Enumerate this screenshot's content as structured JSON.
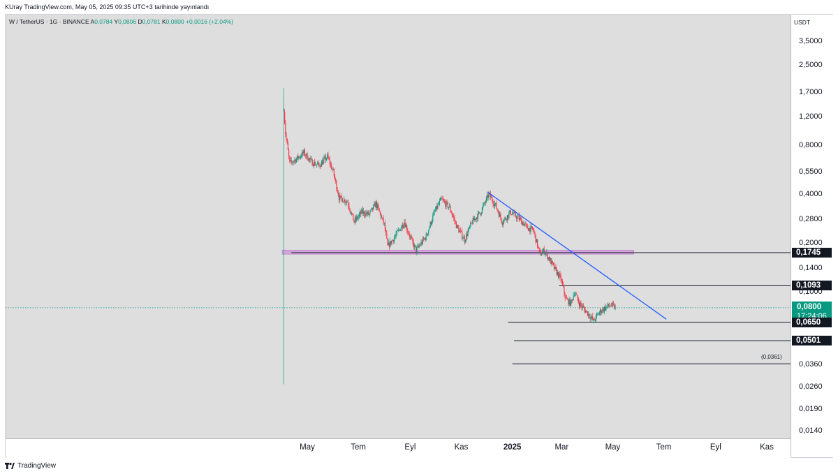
{
  "header": {
    "publisher": "KUray TradingView.com, May 05, 2025 09:35 UTC+3 tarihinde yayınlandı"
  },
  "legend": {
    "symbol": "W / TetherUS · 1G · BINANCE",
    "open_label": "A",
    "open": "0,0784",
    "high_label": "Y",
    "high": "0,0806",
    "low_label": "D",
    "low": "0,0781",
    "close_label": "K",
    "close": "0,0800",
    "change": "+0,0016 (+2,04%)"
  },
  "footer": {
    "brand": "TradingView"
  },
  "chart_data": {
    "type": "candlestick",
    "symbol": "W/USDT",
    "timeframe": "1G",
    "exchange": "BINANCE",
    "y_scale": "log",
    "y_unit": "USDT",
    "ylim": [
      0.0125,
      4.6
    ],
    "y_ticks": [
      "3,5000",
      "2,5000",
      "1,7000",
      "1,2000",
      "0,8000",
      "0,5500",
      "0,4000",
      "0,2800",
      "0,2000",
      "0,1400",
      "0,1000",
      "0,0360",
      "0,0260",
      "0,0190",
      "0,0140"
    ],
    "y_tick_values": [
      3.5,
      2.5,
      1.7,
      1.2,
      0.8,
      0.55,
      0.4,
      0.28,
      0.2,
      0.14,
      0.1,
      0.036,
      0.026,
      0.019,
      0.014
    ],
    "x_ticks": [
      "May",
      "Tem",
      "Eyl",
      "Kas",
      "2025",
      "Mar",
      "May",
      "Tem",
      "Eyl",
      "Kas"
    ],
    "x_tick_dates": [
      "2024-05-01",
      "2024-07-01",
      "2024-09-01",
      "2024-11-01",
      "2025-01-01",
      "2025-03-01",
      "2025-05-01",
      "2025-07-01",
      "2025-09-01",
      "2025-11-01"
    ],
    "bold_x_tick": "2025",
    "price_path": [
      [
        "2024-04-03",
        1.35
      ],
      [
        "2024-04-05",
        0.95
      ],
      [
        "2024-04-10",
        0.62
      ],
      [
        "2024-04-18",
        0.66
      ],
      [
        "2024-04-27",
        0.72
      ],
      [
        "2024-05-06",
        0.63
      ],
      [
        "2024-05-15",
        0.6
      ],
      [
        "2024-05-25",
        0.68
      ],
      [
        "2024-06-01",
        0.55
      ],
      [
        "2024-06-08",
        0.38
      ],
      [
        "2024-06-18",
        0.36
      ],
      [
        "2024-06-26",
        0.27
      ],
      [
        "2024-07-05",
        0.31
      ],
      [
        "2024-07-14",
        0.3
      ],
      [
        "2024-07-22",
        0.35
      ],
      [
        "2024-08-01",
        0.26
      ],
      [
        "2024-08-05",
        0.19
      ],
      [
        "2024-08-14",
        0.22
      ],
      [
        "2024-08-25",
        0.27
      ],
      [
        "2024-09-02",
        0.21
      ],
      [
        "2024-09-08",
        0.18
      ],
      [
        "2024-09-20",
        0.22
      ],
      [
        "2024-09-30",
        0.31
      ],
      [
        "2024-10-08",
        0.37
      ],
      [
        "2024-10-18",
        0.33
      ],
      [
        "2024-10-27",
        0.25
      ],
      [
        "2024-11-05",
        0.21
      ],
      [
        "2024-11-14",
        0.27
      ],
      [
        "2024-11-24",
        0.31
      ],
      [
        "2024-12-04",
        0.4
      ],
      [
        "2024-12-12",
        0.34
      ],
      [
        "2024-12-20",
        0.27
      ],
      [
        "2024-12-30",
        0.31
      ],
      [
        "2025-01-10",
        0.28
      ],
      [
        "2025-01-18",
        0.25
      ],
      [
        "2025-01-26",
        0.24
      ],
      [
        "2025-02-03",
        0.17
      ],
      [
        "2025-02-08",
        0.18
      ],
      [
        "2025-02-14",
        0.16
      ],
      [
        "2025-02-20",
        0.14
      ],
      [
        "2025-02-28",
        0.12
      ],
      [
        "2025-03-06",
        0.09
      ],
      [
        "2025-03-12",
        0.085
      ],
      [
        "2025-03-16",
        0.1
      ],
      [
        "2025-03-22",
        0.085
      ],
      [
        "2025-03-28",
        0.078
      ],
      [
        "2025-04-04",
        0.071
      ],
      [
        "2025-04-08",
        0.066
      ],
      [
        "2025-04-15",
        0.075
      ],
      [
        "2025-04-22",
        0.08
      ],
      [
        "2025-04-28",
        0.083
      ],
      [
        "2025-05-04",
        0.08
      ]
    ],
    "high_low_extremes": {
      "first_day_high": 1.8,
      "first_day_low": 0.027
    },
    "last_price": 0.08,
    "last_price_label": "0,0800",
    "countdown": "17:24:06",
    "trendline": {
      "from": [
        "2024-12-03",
        0.41
      ],
      "to": [
        "2025-07-04",
        0.068
      ],
      "color": "#2962ff"
    },
    "zone": {
      "low": 0.171,
      "high": 0.181,
      "from": "2024-04-01",
      "to": "2025-05-26",
      "color": "#ce93d8"
    },
    "horizontal_levels": [
      {
        "value": 0.1745,
        "label": "0,1745",
        "from": "2024-04-12"
      },
      {
        "value": 0.1093,
        "label": "0,1093",
        "from": "2025-02-26"
      },
      {
        "value": 0.065,
        "label": "0,0650",
        "from": "2024-12-27"
      },
      {
        "value": 0.0501,
        "label": "0,0501",
        "from": "2025-01-03"
      },
      {
        "value": 0.0361,
        "label": "(0,0361)",
        "from": "2025-01-01"
      }
    ],
    "colors": {
      "up": "#089981",
      "down": "#f23645",
      "background": "#dedede",
      "last_price_badge": "#089981"
    }
  }
}
